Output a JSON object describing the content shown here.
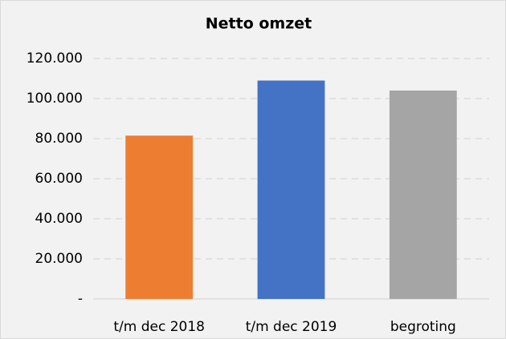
{
  "chart_data": {
    "type": "bar",
    "title": "Netto omzet",
    "categories": [
      "t/m dec 2018",
      "t/m dec 2019",
      "begroting"
    ],
    "values": [
      81500,
      109000,
      104000
    ],
    "colors": [
      "#ed7d31",
      "#4472c4",
      "#a5a5a5"
    ],
    "ylim": [
      0,
      120000
    ],
    "yticks": [
      {
        "value": 0,
        "label": "-"
      },
      {
        "value": 20000,
        "label": "20.000"
      },
      {
        "value": 40000,
        "label": "40.000"
      },
      {
        "value": 60000,
        "label": "60.000"
      },
      {
        "value": 80000,
        "label": "80.000"
      },
      {
        "value": 100000,
        "label": "100.000"
      },
      {
        "value": 120000,
        "label": "120.000"
      }
    ],
    "grid": true
  }
}
